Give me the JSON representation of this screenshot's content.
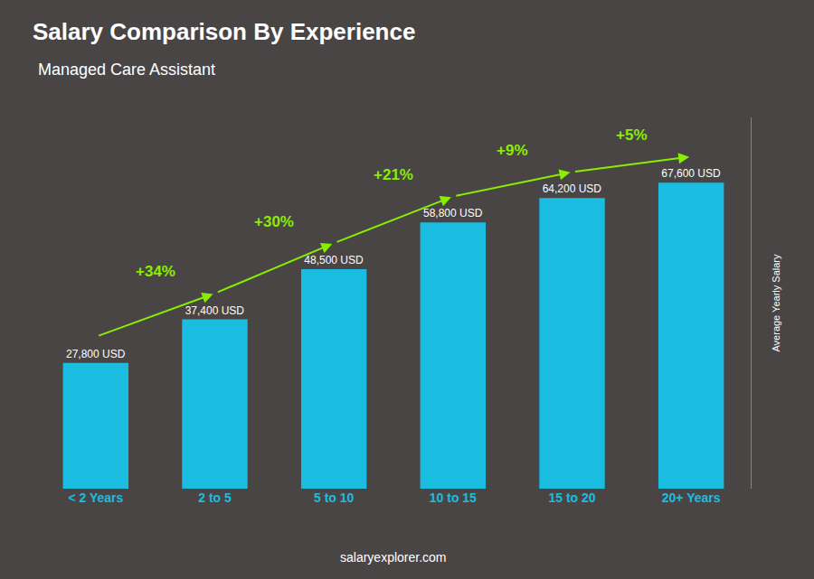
{
  "chart_data": {
    "type": "bar",
    "title": "Salary Comparison By Experience",
    "subtitle": "Managed Care Assistant",
    "ylabel": "Average Yearly Salary",
    "categories": [
      "< 2 Years",
      "2 to 5",
      "5 to 10",
      "10 to 15",
      "15 to 20",
      "20+ Years"
    ],
    "values": [
      27800,
      37400,
      48500,
      58800,
      64200,
      67600
    ],
    "value_labels": [
      "27,800 USD",
      "37,400 USD",
      "48,500 USD",
      "58,800 USD",
      "64,200 USD",
      "67,600 USD"
    ],
    "data_labels": true,
    "color": "#1abde0",
    "ylim": [
      0,
      82000
    ],
    "grid": false,
    "tick_labels": "x",
    "annotations": [
      "+34%",
      "+30%",
      "+21%",
      "+9%",
      "+5%"
    ],
    "caption": "salaryexplorer.com"
  }
}
